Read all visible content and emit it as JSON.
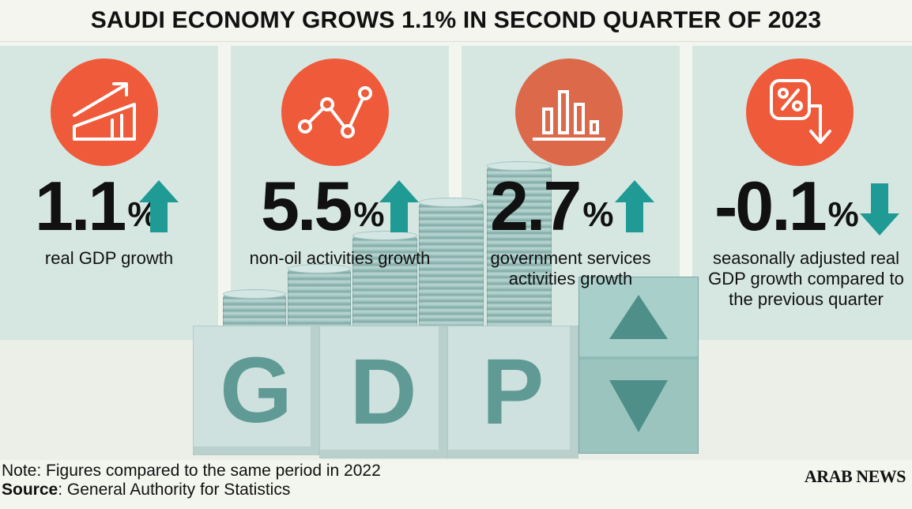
{
  "title": "SAUDI ECONOMY GROWS 1.1% IN SECOND QUARTER OF 2023",
  "colors": {
    "accent": "#ef5a3a",
    "teal_arrow": "#1f9a94",
    "panel": "#d6e7e2"
  },
  "stats": [
    {
      "value": "1.1",
      "unit": "%",
      "direction": "up",
      "label": "real GDP growth",
      "icon": "rising-bar-chart-icon"
    },
    {
      "value": "5.5",
      "unit": "%",
      "direction": "up",
      "label": "non-oil activities growth",
      "icon": "line-graph-icon"
    },
    {
      "value": "2.7",
      "unit": "%",
      "direction": "up",
      "label": "government services activities growth",
      "icon": "bar-chart-icon"
    },
    {
      "value": "-0.1",
      "unit": "%",
      "direction": "down",
      "label": "seasonally adjusted real GDP growth compared to the previous quarter",
      "icon": "percent-down-icon"
    }
  ],
  "blocks": [
    "G",
    "D",
    "P"
  ],
  "note": "Note: Figures compared to the same period in 2022",
  "source": {
    "label": "Source",
    "text": ": General Authority for Statistics"
  },
  "brand": "ARAB NEWS",
  "chart_data": {
    "type": "bar",
    "title": "SAUDI ECONOMY GROWS 1.1% IN SECOND QUARTER OF 2023",
    "categories": [
      "real GDP growth",
      "non-oil activities growth",
      "government services activities growth",
      "seasonally adjusted real GDP growth compared to the previous quarter"
    ],
    "values": [
      1.1,
      5.5,
      2.7,
      -0.1
    ],
    "unit": "%"
  }
}
